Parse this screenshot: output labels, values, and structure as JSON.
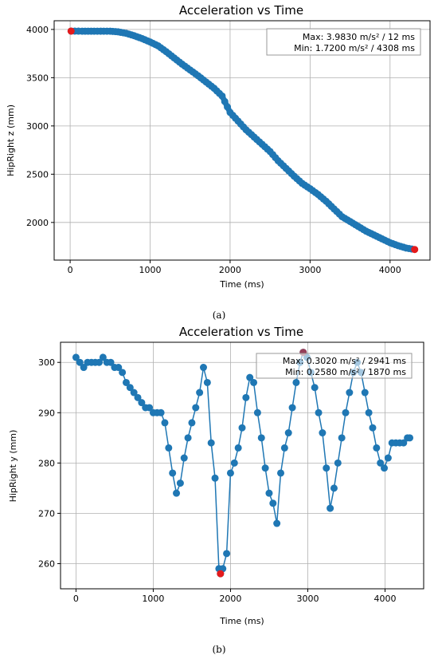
{
  "chart_data": [
    {
      "type": "scatter",
      "title": "Acceleration vs Time",
      "xlabel": "Time (ms)",
      "ylabel": "HipRight z (mm)",
      "xlim": [
        -200,
        4500
      ],
      "ylim": [
        1610,
        4090
      ],
      "xticks": [
        0,
        1000,
        2000,
        3000,
        4000
      ],
      "yticks": [
        2000,
        2500,
        3000,
        3500,
        4000
      ],
      "grid": true,
      "series_color": "#1f77b4",
      "extreme_color": "#e41a1c",
      "annotation": [
        "Max: 3.9830 m/s² / 12 ms",
        "Min: 1.7200 m/s² / 4308 ms"
      ],
      "caption": "(a)",
      "series": [
        {
          "x": [
            12,
            150,
            300,
            500,
            600,
            700,
            800,
            900,
            1000,
            1100,
            1200,
            1300,
            1400,
            1500,
            1600,
            1700,
            1800,
            1900,
            2000,
            2100,
            2200,
            2300,
            2400,
            2500,
            2600,
            2700,
            2800,
            2900,
            3000,
            3100,
            3200,
            3300,
            3400,
            3500,
            3600,
            3700,
            3800,
            3900,
            4000,
            4100,
            4200,
            4308
          ],
          "y": [
            3983,
            3982,
            3982,
            3982,
            3975,
            3960,
            3935,
            3905,
            3870,
            3830,
            3770,
            3705,
            3640,
            3580,
            3520,
            3455,
            3390,
            3310,
            3140,
            3050,
            2960,
            2885,
            2810,
            2735,
            2640,
            2560,
            2480,
            2405,
            2350,
            2290,
            2220,
            2140,
            2060,
            2010,
            1960,
            1910,
            1870,
            1830,
            1790,
            1760,
            1735,
            1720
          ]
        }
      ],
      "extremes": [
        {
          "x": 12,
          "y": 3983
        },
        {
          "x": 4308,
          "y": 1720
        }
      ]
    },
    {
      "type": "line",
      "title": "Acceleration vs Time",
      "xlabel": "Time (ms)",
      "ylabel": "HipRight y (mm)",
      "xlim": [
        -200,
        4500
      ],
      "ylim": [
        255,
        304
      ],
      "xticks": [
        0,
        1000,
        2000,
        3000,
        4000
      ],
      "yticks": [
        260,
        270,
        280,
        290,
        300
      ],
      "grid": true,
      "series_color": "#1f77b4",
      "extreme_color": "#e41a1c",
      "annotation": [
        "Max: 0.3020 m/s² / 2941 ms",
        "Min: 0.2580 m/s² / 1870 ms"
      ],
      "caption": "(b)",
      "series": [
        {
          "x": [
            0,
            50,
            100,
            150,
            200,
            250,
            300,
            350,
            400,
            450,
            500,
            550,
            600,
            650,
            700,
            750,
            800,
            850,
            900,
            950,
            1000,
            1050,
            1100,
            1150,
            1200,
            1250,
            1300,
            1350,
            1400,
            1450,
            1500,
            1550,
            1600,
            1650,
            1700,
            1750,
            1800,
            1850,
            1870,
            1900,
            1950,
            2000,
            2050,
            2100,
            2150,
            2200,
            2250,
            2300,
            2350,
            2400,
            2450,
            2500,
            2550,
            2600,
            2650,
            2700,
            2750,
            2800,
            2850,
            2900,
            2941,
            2990,
            3040,
            3090,
            3140,
            3190,
            3240,
            3290,
            3340,
            3390,
            3440,
            3490,
            3540,
            3590,
            3640,
            3690,
            3740,
            3790,
            3840,
            3890,
            3940,
            3990,
            4040,
            4090,
            4140,
            4190,
            4240,
            4290,
            4320
          ],
          "y": [
            301,
            300,
            299,
            300,
            300,
            300,
            300,
            301,
            300,
            300,
            299,
            299,
            298,
            296,
            295,
            294,
            293,
            292,
            291,
            291,
            290,
            290,
            290,
            288,
            283,
            278,
            274,
            276,
            281,
            285,
            288,
            291,
            294,
            299,
            296,
            284,
            277,
            259,
            258,
            259,
            262,
            278,
            280,
            283,
            287,
            293,
            297,
            296,
            290,
            285,
            279,
            274,
            272,
            268,
            278,
            283,
            286,
            291,
            296,
            300,
            302,
            301,
            298,
            295,
            290,
            286,
            279,
            271,
            275,
            280,
            285,
            290,
            294,
            298,
            300,
            298,
            294,
            290,
            287,
            283,
            280,
            279,
            281,
            284,
            284,
            284,
            284,
            285,
            285
          ]
        }
      ],
      "extremes": [
        {
          "x": 2941,
          "y": 302
        },
        {
          "x": 1870,
          "y": 258
        }
      ]
    }
  ]
}
